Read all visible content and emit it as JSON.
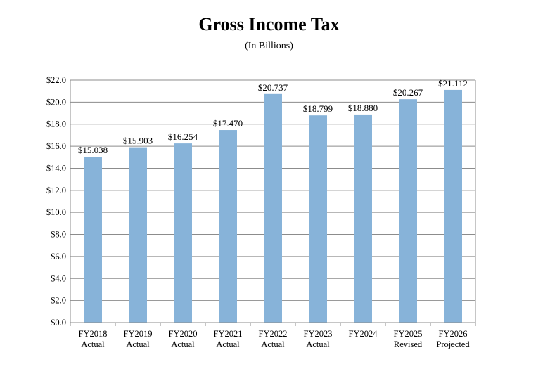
{
  "chart_data": {
    "type": "bar",
    "title": "Gross Income Tax",
    "subtitle": "(In Billions)",
    "xlabel": "",
    "ylabel": "",
    "ylim": [
      0,
      22
    ],
    "ytick_step": 2,
    "ytick_labels": [
      "$0.0",
      "$2.0",
      "$4.0",
      "$6.0",
      "$8.0",
      "$10.0",
      "$12.0",
      "$14.0",
      "$16.0",
      "$18.0",
      "$20.0",
      "$22.0"
    ],
    "grid": true,
    "legend": "none",
    "categories": [
      [
        "FY2018",
        "Actual"
      ],
      [
        "FY2019",
        "Actual"
      ],
      [
        "FY2020",
        "Actual"
      ],
      [
        "FY2021",
        "Actual"
      ],
      [
        "FY2022",
        "Actual"
      ],
      [
        "FY2023",
        "Actual"
      ],
      [
        "FY2024",
        ""
      ],
      [
        "FY2025",
        "Revised"
      ],
      [
        "FY2026",
        "Projected"
      ]
    ],
    "values": [
      15.038,
      15.903,
      16.254,
      17.47,
      20.737,
      18.799,
      18.88,
      20.267,
      21.112
    ],
    "data_labels": [
      "$15.038",
      "$15.903",
      "$16.254",
      "$17.470",
      "$20.737",
      "$18.799",
      "$18.880",
      "$20.267",
      "$21.112"
    ],
    "bar_color": "#87b3d9",
    "grid_color": "#8c8c8c"
  }
}
